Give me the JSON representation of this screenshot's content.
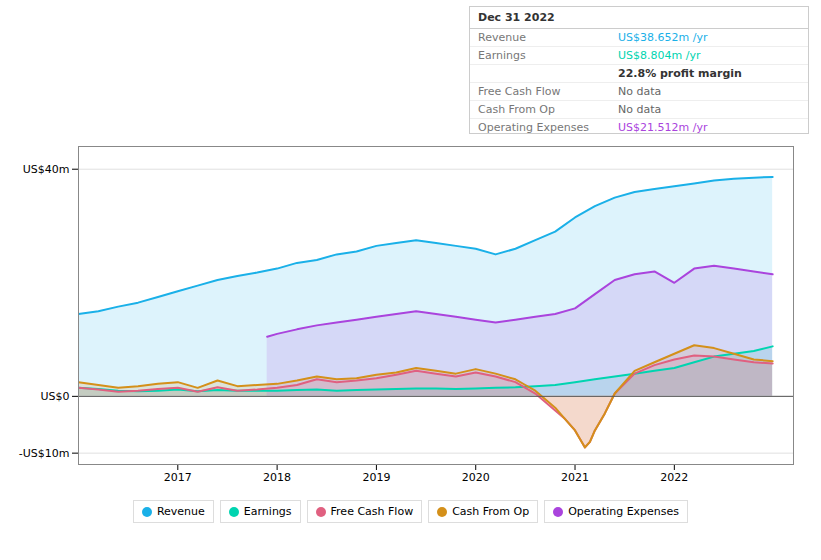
{
  "chart_data": {
    "type": "area",
    "xlim": [
      2016.0,
      2023.2
    ],
    "xticks": [
      2017,
      2018,
      2019,
      2020,
      2021,
      2022
    ],
    "ylim": [
      -12,
      44
    ],
    "yticks": [
      {
        "value": -10,
        "label": "-US$10m"
      },
      {
        "value": 0,
        "label": "US$0"
      },
      {
        "value": 40,
        "label": "US$40m"
      }
    ],
    "grid": true,
    "series": [
      {
        "name": "Revenue",
        "color": "#1ab0e8",
        "x": [
          2016.0,
          2016.2,
          2016.4,
          2016.6,
          2016.8,
          2017.0,
          2017.2,
          2017.4,
          2017.6,
          2017.8,
          2018.0,
          2018.2,
          2018.4,
          2018.6,
          2018.8,
          2019.0,
          2019.2,
          2019.4,
          2019.6,
          2019.8,
          2020.0,
          2020.2,
          2020.4,
          2020.6,
          2020.8,
          2021.0,
          2021.2,
          2021.4,
          2021.6,
          2021.8,
          2022.0,
          2022.2,
          2022.4,
          2022.6,
          2022.8,
          2022.99
        ],
        "values": [
          14.5,
          15.0,
          15.8,
          16.5,
          17.5,
          18.5,
          19.5,
          20.5,
          21.2,
          21.8,
          22.5,
          23.5,
          24.0,
          25.0,
          25.5,
          26.5,
          27.0,
          27.5,
          27.0,
          26.5,
          26.0,
          25.0,
          26.0,
          27.5,
          29.0,
          31.5,
          33.5,
          35.0,
          36.0,
          36.5,
          37.0,
          37.5,
          38.0,
          38.3,
          38.5,
          38.65
        ]
      },
      {
        "name": "Earnings",
        "color": "#00d4b0",
        "x": [
          2016.0,
          2016.2,
          2016.4,
          2016.6,
          2016.8,
          2017.0,
          2017.2,
          2017.4,
          2017.6,
          2017.8,
          2018.0,
          2018.2,
          2018.4,
          2018.6,
          2018.8,
          2019.0,
          2019.2,
          2019.4,
          2019.6,
          2019.8,
          2020.0,
          2020.2,
          2020.4,
          2020.6,
          2020.8,
          2021.0,
          2021.2,
          2021.4,
          2021.6,
          2021.8,
          2022.0,
          2022.2,
          2022.4,
          2022.6,
          2022.8,
          2022.99
        ],
        "values": [
          1.5,
          1.3,
          1.0,
          0.9,
          1.0,
          1.2,
          0.9,
          1.1,
          1.0,
          1.0,
          1.0,
          1.1,
          1.2,
          1.0,
          1.1,
          1.2,
          1.3,
          1.4,
          1.4,
          1.3,
          1.4,
          1.5,
          1.6,
          1.8,
          2.0,
          2.5,
          3.0,
          3.5,
          4.0,
          4.5,
          5.0,
          6.0,
          7.0,
          7.5,
          8.0,
          8.8
        ]
      },
      {
        "name": "Free Cash Flow",
        "color": "#e06080",
        "x": [
          2016.0,
          2016.2,
          2016.4,
          2016.6,
          2016.8,
          2017.0,
          2017.2,
          2017.4,
          2017.6,
          2017.8,
          2018.0,
          2018.2,
          2018.4,
          2018.6,
          2018.8,
          2019.0,
          2019.2,
          2019.4,
          2019.6,
          2019.8,
          2020.0,
          2020.2,
          2020.4,
          2020.5,
          2020.6,
          2020.7,
          2020.8,
          2020.9,
          2021.0,
          2021.05,
          2021.1,
          2021.15,
          2021.2,
          2021.3,
          2021.4,
          2021.6,
          2021.8,
          2022.0,
          2022.2,
          2022.4,
          2022.6,
          2022.8,
          2022.99
        ],
        "values": [
          1.5,
          1.2,
          0.8,
          1.0,
          1.3,
          1.5,
          0.8,
          1.6,
          1.0,
          1.2,
          1.5,
          2.0,
          3.0,
          2.5,
          2.8,
          3.2,
          3.8,
          4.5,
          4.0,
          3.5,
          4.2,
          3.5,
          2.5,
          1.5,
          0.5,
          -1.0,
          -2.5,
          -4.0,
          -6.0,
          -7.5,
          -9.0,
          -8.0,
          -6.0,
          -3.0,
          0.5,
          4.0,
          5.5,
          6.5,
          7.2,
          7.0,
          6.5,
          6.0,
          5.8
        ]
      },
      {
        "name": "Cash From Op",
        "color": "#d4901a",
        "x": [
          2016.0,
          2016.2,
          2016.4,
          2016.6,
          2016.8,
          2017.0,
          2017.2,
          2017.4,
          2017.6,
          2017.8,
          2018.0,
          2018.2,
          2018.4,
          2018.6,
          2018.8,
          2019.0,
          2019.2,
          2019.4,
          2019.6,
          2019.8,
          2020.0,
          2020.2,
          2020.4,
          2020.5,
          2020.6,
          2020.7,
          2020.8,
          2020.9,
          2021.0,
          2021.05,
          2021.1,
          2021.15,
          2021.2,
          2021.3,
          2021.4,
          2021.6,
          2021.8,
          2022.0,
          2022.2,
          2022.4,
          2022.6,
          2022.8,
          2022.99
        ],
        "values": [
          2.5,
          2.0,
          1.5,
          1.8,
          2.2,
          2.5,
          1.5,
          2.8,
          1.8,
          2.0,
          2.2,
          2.8,
          3.5,
          3.0,
          3.2,
          3.8,
          4.2,
          5.0,
          4.5,
          4.0,
          4.8,
          4.0,
          3.0,
          2.0,
          1.0,
          -0.5,
          -2.0,
          -4.0,
          -6.0,
          -7.5,
          -9.0,
          -8.0,
          -6.0,
          -3.0,
          0.5,
          4.5,
          6.0,
          7.5,
          9.0,
          8.5,
          7.5,
          6.5,
          6.2
        ]
      },
      {
        "name": "Operating Expenses",
        "color": "#aa44dd",
        "x": [
          2017.9,
          2018.0,
          2018.2,
          2018.4,
          2018.6,
          2018.8,
          2019.0,
          2019.2,
          2019.4,
          2019.6,
          2019.8,
          2020.0,
          2020.2,
          2020.4,
          2020.6,
          2020.8,
          2021.0,
          2021.2,
          2021.4,
          2021.6,
          2021.8,
          2022.0,
          2022.2,
          2022.4,
          2022.6,
          2022.8,
          2022.99
        ],
        "values": [
          10.5,
          11.0,
          11.8,
          12.5,
          13.0,
          13.5,
          14.0,
          14.5,
          15.0,
          14.5,
          14.0,
          13.5,
          13.0,
          13.5,
          14.0,
          14.5,
          15.5,
          18.0,
          20.5,
          21.5,
          22.0,
          20.0,
          22.5,
          23.0,
          22.5,
          22.0,
          21.5
        ]
      }
    ],
    "annotations": [
      {
        "text": "Dec 31 2022"
      },
      {
        "label": "Revenue",
        "text": "US$38.652m /yr",
        "color": "#1ab0e8"
      },
      {
        "label": "Earnings",
        "text": "US$8.804m /yr",
        "color": "#00d4b0"
      },
      {
        "text": "22.8% profit margin"
      },
      {
        "label": "Free Cash Flow",
        "text": "No data",
        "color": "#666666"
      },
      {
        "label": "Cash From Op",
        "text": "No data",
        "color": "#666666"
      },
      {
        "label": "Operating Expenses",
        "text": "US$21.512m /yr",
        "color": "#aa44dd"
      }
    ]
  }
}
